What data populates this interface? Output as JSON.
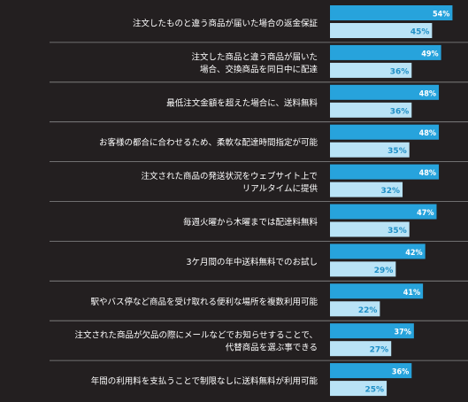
{
  "chart_data": {
    "type": "bar",
    "orientation": "horizontal",
    "categories": [
      [
        "注文したものと違う商品が届いた場合の返金保証"
      ],
      [
        "注文した商品と違う商品が届いた",
        "場合、交換商品を同日中に配達"
      ],
      [
        "最低注文金額を超えた場合に、送料無料"
      ],
      [
        "お客様の都合に合わせるため、柔軟な配達時間指定が可能"
      ],
      [
        "注文された商品の発送状況をウェブサイト上で",
        "リアルタイムに提供"
      ],
      [
        "毎週火曜から木曜までは配達料無料"
      ],
      [
        "3ケ月間の年中送料無料でのお試し"
      ],
      [
        "駅やバス停など商品を受け取れる便利な場所を複数利用可能"
      ],
      [
        "注文された商品が欠品の際にメールなどでお知らせすることで、",
        "代替商品を選ぶ事できる"
      ],
      [
        "年間の利用料を支払うことで制限なしに送料無料が利用可能"
      ]
    ],
    "series": [
      {
        "values": [
          54,
          49,
          48,
          48,
          48,
          47,
          42,
          41,
          37,
          36
        ],
        "labels": [
          "54%",
          "49%",
          "48%",
          "48%",
          "48%",
          "47%",
          "42%",
          "41%",
          "37%",
          "36%"
        ]
      },
      {
        "values": [
          45,
          36,
          36,
          35,
          32,
          35,
          29,
          22,
          27,
          25
        ],
        "labels": [
          "45%",
          "36%",
          "36%",
          "35%",
          "32%",
          "35%",
          "29%",
          "22%",
          "27%",
          "25%"
        ]
      }
    ],
    "xlim": [
      0,
      55
    ],
    "colors": {
      "background": "#231f20",
      "series_a": "#27a3dc",
      "series_b": "#b9e3f6",
      "divider": "#8a8a8a",
      "label_text": "#ffffff",
      "value_a_text": "#ffffff",
      "value_b_text": "#1f8fc6"
    }
  }
}
